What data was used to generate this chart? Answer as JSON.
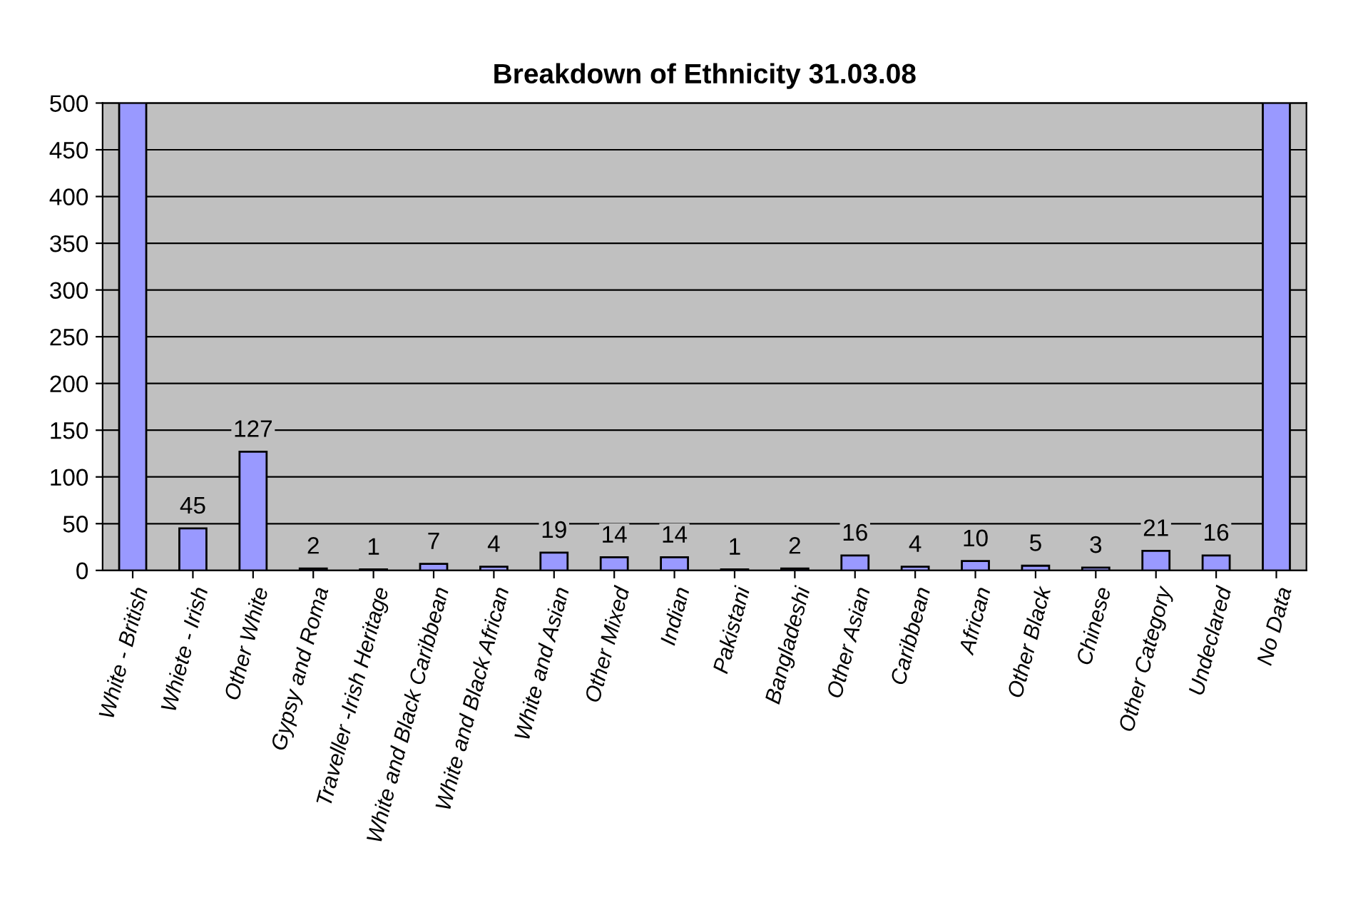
{
  "chart_data": {
    "type": "bar",
    "title": "Breakdown of Ethnicity 31.03.08",
    "categories": [
      "White - British",
      "Whiete - Irish",
      "Other White",
      "Gypsy and Roma",
      "Traveller -Irish Heritage",
      "White and Black Caribbean",
      "White and Black African",
      "White and Asian",
      "Other Mixed",
      "Indian",
      "Pakistani",
      "Bangladeshi",
      "Other Asian",
      "Caribbean",
      "African",
      "Other Black",
      "Chinese",
      "Other Category",
      "Undeclared",
      "No Data"
    ],
    "values": [
      500,
      45,
      127,
      2,
      1,
      7,
      4,
      19,
      14,
      14,
      1,
      2,
      16,
      4,
      10,
      5,
      3,
      21,
      16,
      500
    ],
    "value_labels": [
      null,
      "45",
      "127",
      "2",
      "1",
      "7",
      "4",
      "19",
      "14",
      "14",
      "1",
      "2",
      "16",
      "4",
      "10",
      "5",
      "3",
      "21",
      "16",
      null
    ],
    "color": "#9999ff",
    "ylim": [
      0,
      500
    ],
    "yticks": [
      0,
      50,
      100,
      150,
      200,
      250,
      300,
      350,
      400,
      450,
      500
    ],
    "grid": "y"
  }
}
